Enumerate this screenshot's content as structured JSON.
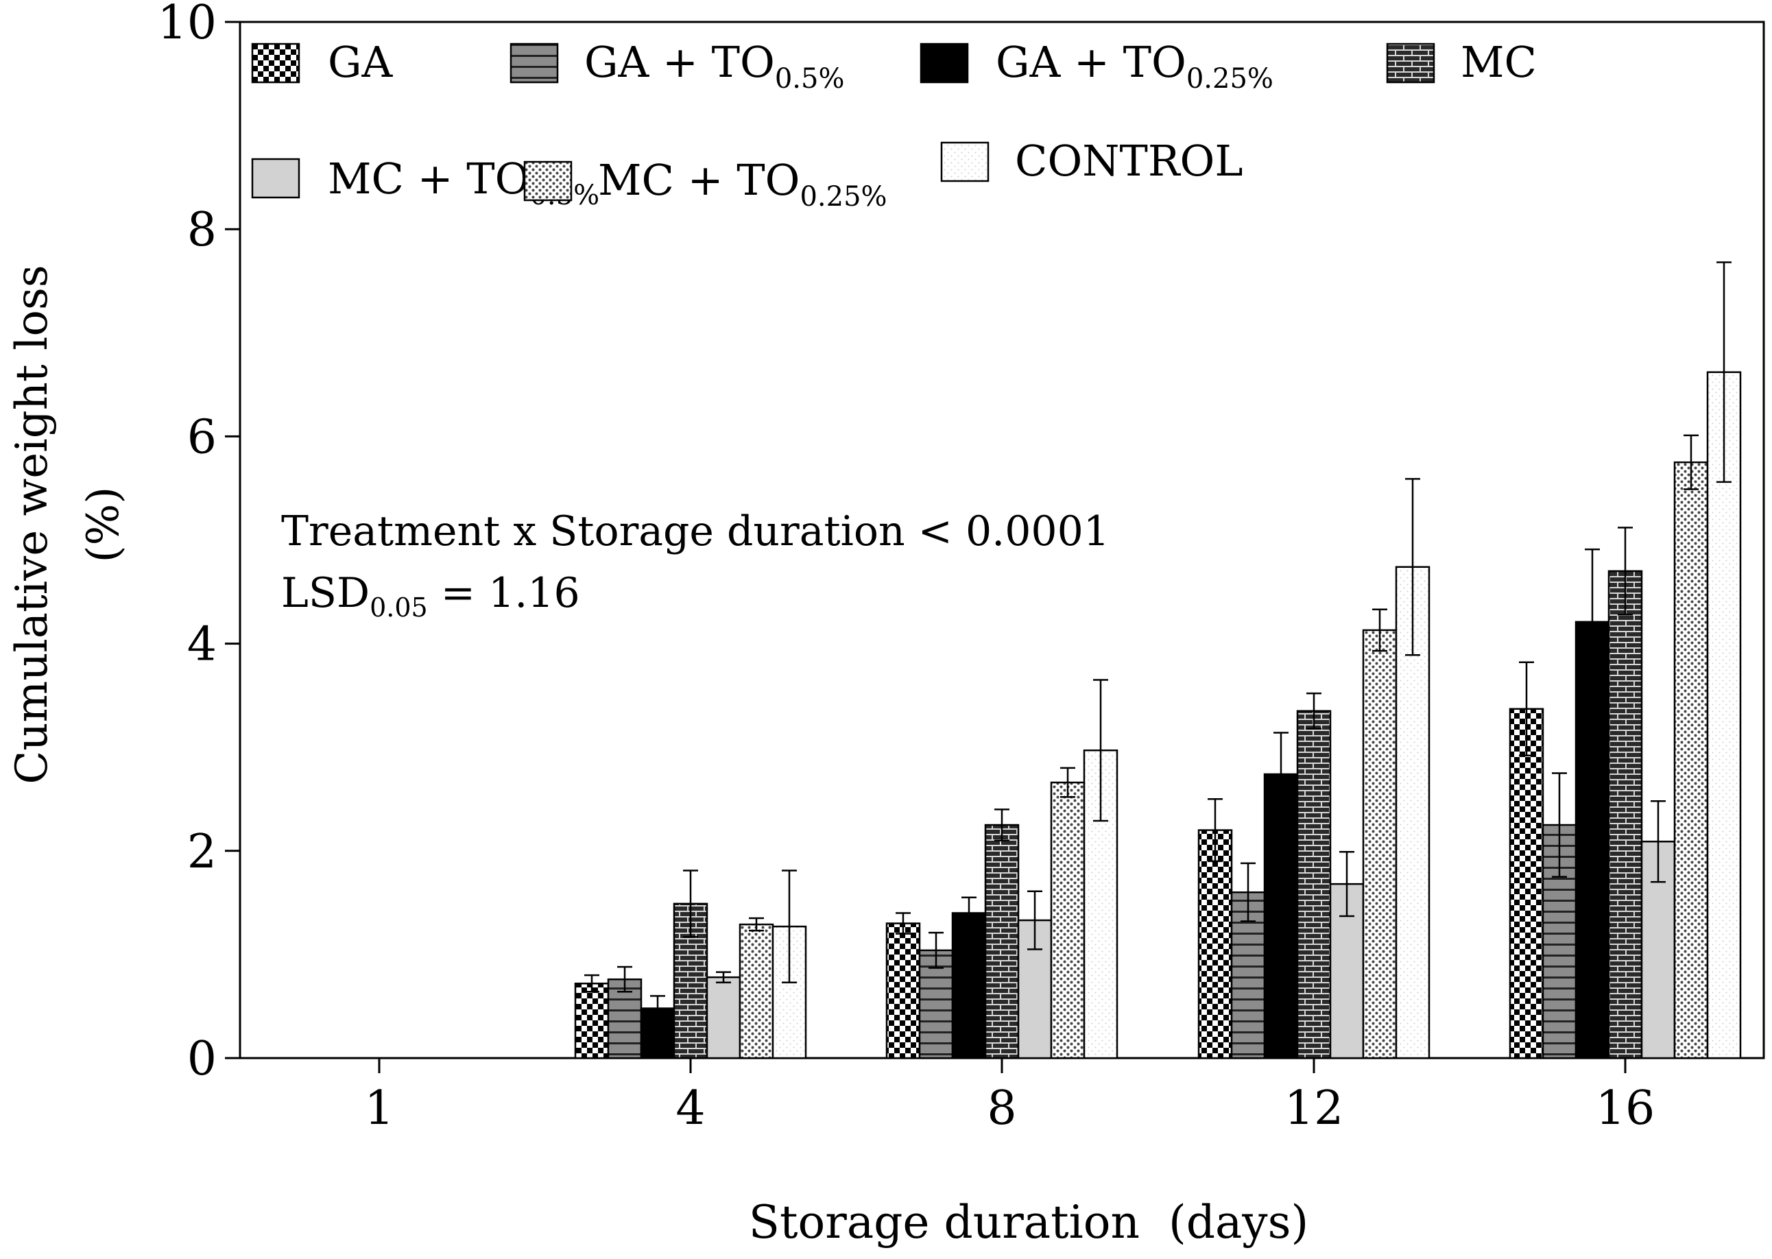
{
  "chart_data": {
    "type": "bar",
    "xlabel": "Storage duration  (days)",
    "ylabel_line1": "Cumulative weight loss",
    "ylabel_line2": "(%)",
    "ylim": [
      0,
      10
    ],
    "yticks": [
      0,
      2,
      4,
      6,
      8,
      10
    ],
    "categories": [
      "1",
      "4",
      "8",
      "12",
      "16"
    ],
    "annotation": {
      "line1": "Treatment x Storage duration < 0.0001",
      "line2_main": "LSD",
      "line2_sub": "0.05",
      "line2_rest": " = 1.16"
    },
    "legend_placement": "top, inside plot, 4 columns x 2 rows",
    "series": [
      {
        "name": "GA",
        "name_main": "GA",
        "name_sub": "",
        "pattern": "checker",
        "values": [
          0,
          0.72,
          1.3,
          2.2,
          3.37
        ],
        "errors": [
          0,
          0.08,
          0.1,
          0.3,
          0.45
        ]
      },
      {
        "name": "GA + TO0.5%",
        "name_main": "GA + TO",
        "name_sub": "0.5%",
        "pattern": "hstripes",
        "values": [
          0,
          0.76,
          1.04,
          1.6,
          2.25
        ],
        "errors": [
          0,
          0.12,
          0.17,
          0.28,
          0.5
        ]
      },
      {
        "name": "GA + TO0.25%",
        "name_main": "GA + TO",
        "name_sub": "0.25%",
        "pattern": "solid",
        "values": [
          0,
          0.48,
          1.4,
          2.74,
          4.21
        ],
        "errors": [
          0,
          0.12,
          0.15,
          0.4,
          0.7
        ]
      },
      {
        "name": "MC",
        "name_main": "MC",
        "name_sub": "",
        "pattern": "brick",
        "values": [
          0,
          1.49,
          2.25,
          3.35,
          4.7
        ],
        "errors": [
          0,
          0.32,
          0.15,
          0.17,
          0.42
        ]
      },
      {
        "name": "MC + TO0.5%",
        "name_main": "MC + TO",
        "name_sub": "0.5%",
        "pattern": "lightgray",
        "values": [
          0,
          0.78,
          1.33,
          1.68,
          2.09
        ],
        "errors": [
          0,
          0.05,
          0.28,
          0.31,
          0.39
        ]
      },
      {
        "name": "MC + TO0.25%",
        "name_main": "MC + TO",
        "name_sub": "0.25%",
        "pattern": "dots",
        "values": [
          0,
          1.29,
          2.66,
          4.13,
          5.75
        ],
        "errors": [
          0,
          0.06,
          0.14,
          0.2,
          0.26
        ]
      },
      {
        "name": "CONTROL",
        "name_main": "CONTROL",
        "name_sub": "",
        "pattern": "faint",
        "values": [
          0,
          1.27,
          2.97,
          4.74,
          6.62
        ],
        "errors": [
          0,
          0.54,
          0.68,
          0.85,
          1.06
        ]
      }
    ]
  },
  "colors": {
    "axis": "#000000",
    "solid": "#000000",
    "stripe_fill": "#8c8c8c",
    "light_gray": "#d2d2d2",
    "dot_gray": "#555555"
  }
}
